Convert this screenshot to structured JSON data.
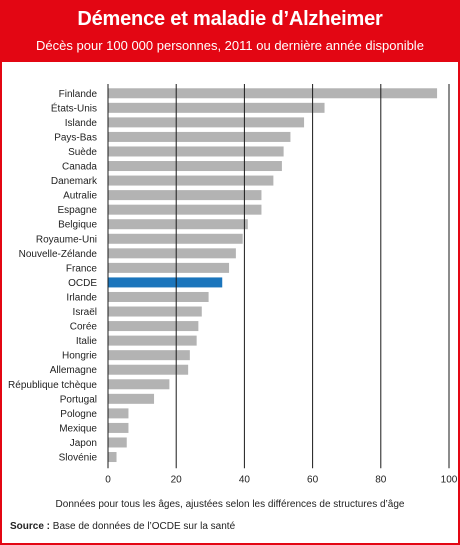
{
  "title": "Démence et maladie d’Alzheimer",
  "subtitle": "Décès pour 100 000 personnes, 2011 ou dernière année disponible",
  "source_label": "Source :",
  "source_text": "Base de données de l’OCDE sur la santé",
  "colors": {
    "accent": "#e30613",
    "bar": "#b3b3b3",
    "highlight": "#1b75bc"
  },
  "chart_data": {
    "type": "bar",
    "orientation": "horizontal",
    "categories": [
      "Finlande",
      "États-Unis",
      "Islande",
      "Pays-Bas",
      "Suède",
      "Canada",
      "Danemark",
      "Autralie",
      "Espagne",
      "Belgique",
      "Royaume-Uni",
      "Nouvelle-Zélande",
      "France",
      "OCDE",
      "Irlande",
      "Israël",
      "Corée",
      "Italie",
      "Hongrie",
      "Allemagne",
      "République tchèque",
      "Portugal",
      "Pologne",
      "Mexique",
      "Japon",
      "Slovénie"
    ],
    "values": [
      96.5,
      63.5,
      57.5,
      53.5,
      51.5,
      51,
      48.5,
      45,
      45,
      41,
      39.5,
      37.5,
      35.5,
      33.5,
      29.5,
      27.5,
      26.5,
      26,
      24,
      23.5,
      18,
      13.5,
      6,
      6,
      5.5,
      2.5
    ],
    "highlight": "OCDE",
    "xlabel": "Données pour tous les âges, ajustées selon les différences de structures d’âge",
    "xticks": [
      0,
      20,
      40,
      60,
      80,
      100
    ],
    "xlim": [
      0,
      100
    ],
    "grid": true
  }
}
